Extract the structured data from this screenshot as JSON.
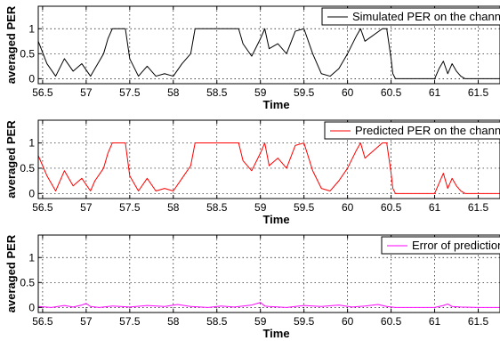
{
  "chart_data": [
    {
      "type": "line",
      "xlabel": "Time",
      "ylabel": "averaged PER",
      "xlim": [
        56.45,
        61.75
      ],
      "ylim": [
        -0.1,
        1.45
      ],
      "xticks": [
        56.5,
        57,
        57.5,
        58,
        58.5,
        59,
        59.5,
        60,
        60.5,
        61,
        61.5
      ],
      "xtick_labels": [
        "56.5",
        "57",
        "57.5",
        "58",
        "58.5",
        "59",
        "59.5",
        "60",
        "60.5",
        "61",
        "61.5"
      ],
      "yticks": [
        0,
        0.5,
        1
      ],
      "ytick_labels": [
        "0",
        "0.5",
        "1"
      ],
      "grid": true,
      "legend_position": "top-right",
      "series": [
        {
          "name": "Simulated PER on the channel",
          "color": "#000000",
          "x": [
            56.45,
            56.55,
            56.65,
            56.75,
            56.85,
            56.95,
            57.05,
            57.1,
            57.2,
            57.25,
            57.3,
            57.45,
            57.5,
            57.6,
            57.7,
            57.8,
            57.9,
            58.0,
            58.1,
            58.2,
            58.25,
            58.5,
            58.75,
            58.8,
            58.9,
            59.0,
            59.05,
            59.1,
            59.2,
            59.3,
            59.4,
            59.5,
            59.6,
            59.7,
            59.8,
            59.9,
            60.0,
            60.1,
            60.15,
            60.2,
            60.4,
            60.45,
            60.5,
            60.52,
            60.55,
            61.0,
            61.05,
            61.1,
            61.15,
            61.2,
            61.25,
            61.3,
            61.35,
            61.75
          ],
          "y": [
            0.75,
            0.3,
            0.05,
            0.4,
            0.15,
            0.3,
            0.05,
            0.2,
            0.5,
            0.8,
            1.0,
            1.0,
            0.4,
            0.05,
            0.25,
            0.05,
            0.1,
            0.05,
            0.3,
            0.5,
            1.0,
            1.0,
            1.0,
            0.7,
            0.45,
            0.8,
            1.0,
            0.6,
            0.7,
            0.5,
            0.95,
            1.0,
            0.5,
            0.1,
            0.05,
            0.2,
            0.5,
            0.85,
            1.0,
            0.75,
            1.0,
            1.0,
            0.4,
            0.1,
            0.0,
            0.0,
            0.2,
            0.35,
            0.1,
            0.3,
            0.15,
            0.05,
            0.0,
            0.0
          ]
        }
      ]
    },
    {
      "type": "line",
      "xlabel": "Time",
      "ylabel": "averaged PER",
      "xlim": [
        56.45,
        61.75
      ],
      "ylim": [
        -0.1,
        1.45
      ],
      "xticks": [
        56.5,
        57,
        57.5,
        58,
        58.5,
        59,
        59.5,
        60,
        60.5,
        61,
        61.5
      ],
      "xtick_labels": [
        "56.5",
        "57",
        "57.5",
        "58",
        "58.5",
        "59",
        "59.5",
        "60",
        "60.5",
        "61",
        "61.5"
      ],
      "yticks": [
        0,
        0.5,
        1
      ],
      "ytick_labels": [
        "0",
        "0.5",
        "1"
      ],
      "grid": true,
      "legend_position": "top-right",
      "series": [
        {
          "name": "Predicted PER on the channel",
          "color": "#ff0000",
          "x": [
            56.45,
            56.55,
            56.65,
            56.75,
            56.85,
            56.95,
            57.05,
            57.1,
            57.2,
            57.25,
            57.3,
            57.45,
            57.5,
            57.6,
            57.7,
            57.8,
            57.9,
            58.0,
            58.1,
            58.2,
            58.25,
            58.5,
            58.75,
            58.8,
            58.9,
            59.0,
            59.05,
            59.1,
            59.2,
            59.3,
            59.4,
            59.5,
            59.6,
            59.7,
            59.8,
            59.9,
            60.0,
            60.1,
            60.15,
            60.2,
            60.4,
            60.45,
            60.5,
            60.52,
            60.55,
            61.0,
            61.05,
            61.1,
            61.15,
            61.2,
            61.25,
            61.3,
            61.35,
            61.75
          ],
          "y": [
            0.75,
            0.35,
            0.05,
            0.45,
            0.15,
            0.3,
            0.05,
            0.25,
            0.5,
            0.8,
            1.0,
            1.0,
            0.35,
            0.05,
            0.3,
            0.05,
            0.1,
            0.05,
            0.3,
            0.55,
            1.0,
            1.0,
            1.0,
            0.65,
            0.45,
            0.8,
            1.0,
            0.55,
            0.7,
            0.5,
            0.95,
            1.0,
            0.45,
            0.1,
            0.05,
            0.25,
            0.5,
            0.85,
            1.0,
            0.7,
            1.0,
            1.0,
            0.4,
            0.1,
            0.0,
            0.0,
            0.2,
            0.4,
            0.1,
            0.3,
            0.15,
            0.05,
            0.0,
            0.0
          ]
        }
      ]
    },
    {
      "type": "line",
      "xlabel": "Time",
      "ylabel": "averaged PER",
      "xlim": [
        56.45,
        61.75
      ],
      "ylim": [
        -0.1,
        1.45
      ],
      "xticks": [
        56.5,
        57,
        57.5,
        58,
        58.5,
        59,
        59.5,
        60,
        60.5,
        61,
        61.5
      ],
      "xtick_labels": [
        "56.5",
        "57",
        "57.5",
        "58",
        "58.5",
        "59",
        "59.5",
        "60",
        "60.5",
        "61",
        "61.5"
      ],
      "yticks": [
        0,
        0.5,
        1
      ],
      "ytick_labels": [
        "0",
        "0.5",
        "1"
      ],
      "grid": true,
      "legend_position": "top-right",
      "series": [
        {
          "name": "Error of prediction",
          "color": "#ff00ff",
          "x": [
            56.45,
            56.6,
            56.75,
            56.85,
            56.95,
            57.0,
            57.05,
            57.15,
            57.3,
            57.5,
            57.7,
            57.9,
            58.05,
            58.2,
            58.4,
            58.55,
            58.7,
            58.9,
            59.0,
            59.05,
            59.1,
            59.3,
            59.5,
            59.7,
            59.9,
            60.05,
            60.2,
            60.35,
            60.45,
            60.55,
            61.0,
            61.1,
            61.15,
            61.2,
            61.3,
            61.5,
            61.75
          ],
          "y": [
            0.02,
            0.0,
            0.04,
            0.01,
            0.05,
            0.08,
            0.02,
            0.0,
            0.03,
            0.01,
            0.04,
            0.02,
            0.06,
            0.02,
            0.0,
            0.03,
            0.01,
            0.05,
            0.1,
            0.03,
            0.02,
            0.0,
            0.04,
            0.02,
            0.05,
            0.01,
            0.03,
            0.06,
            0.02,
            0.0,
            0.0,
            0.04,
            0.07,
            0.02,
            0.01,
            0.0,
            0.0
          ]
        }
      ]
    }
  ]
}
